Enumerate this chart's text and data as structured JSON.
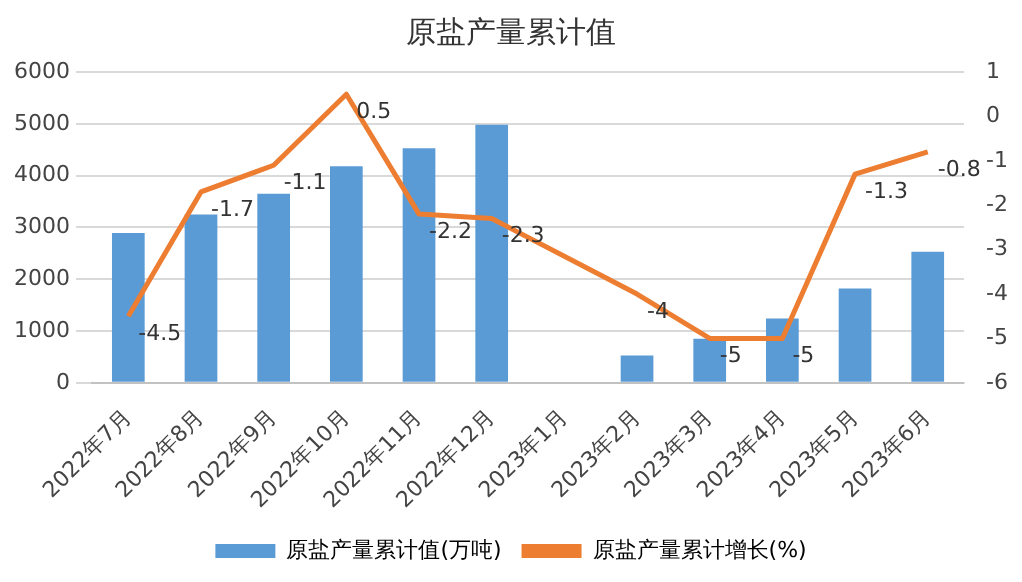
{
  "chart_data": {
    "type": "bar",
    "title": "原盐产量累计值",
    "categories": [
      "2022年7月",
      "2022年8月",
      "2022年9月",
      "2022年10月",
      "2022年11月",
      "2022年12月",
      "2023年1月",
      "2023年2月",
      "2023年3月",
      "2023年4月",
      "2023年5月",
      "2023年6月"
    ],
    "series": [
      {
        "name": "原盐产量累计值(万吨)",
        "type": "bar",
        "color": "#5b9bd5",
        "values": [
          2890,
          3250,
          3650,
          4180,
          4530,
          4980,
          null,
          530,
          850,
          1240,
          1820,
          2530
        ]
      },
      {
        "name": "原盐产量累计增长(%)",
        "type": "line",
        "axis": "y2",
        "color": "#ed7d31",
        "values": [
          -4.5,
          -1.7,
          -1.1,
          0.5,
          -2.2,
          -2.3,
          null,
          -4,
          -5,
          -5,
          -1.3,
          -0.8
        ],
        "value_labels": [
          "-4.5",
          "-1.7",
          "-1.1",
          "0.5",
          "-2.2",
          "-2.3",
          null,
          "-4",
          "-5",
          "-5",
          "-1.3",
          "-0.8"
        ]
      }
    ],
    "ylim": [
      0,
      6000
    ],
    "yticks": [
      0,
      1000,
      2000,
      3000,
      4000,
      5000,
      6000
    ],
    "y2lim": [
      -6,
      1
    ],
    "y2ticks": [
      -6,
      -5,
      -4,
      -3,
      -2,
      -1,
      0,
      1
    ],
    "grid": "y",
    "legend": "bottom",
    "marker": "none"
  }
}
